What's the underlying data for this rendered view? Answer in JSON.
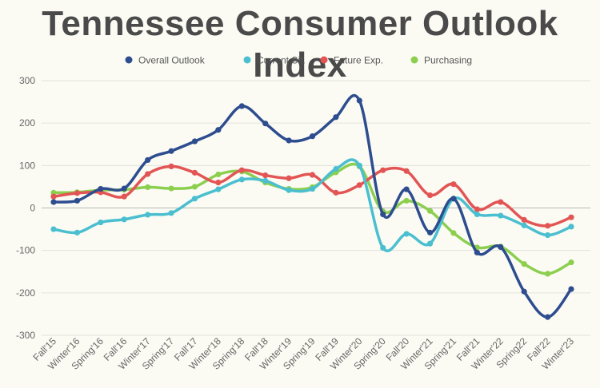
{
  "chart_data": {
    "type": "line",
    "title": "Tennessee Consumer Outlook Index",
    "xlabel": "",
    "ylabel": "",
    "ylim": [
      -300,
      300
    ],
    "yticks": [
      300,
      200,
      100,
      0,
      -100,
      -200,
      -300
    ],
    "grid": true,
    "legend_position": "top-center",
    "categories": [
      "Fall'15",
      "Winter'16",
      "Spring'16",
      "Fall'16",
      "Winter'17",
      "Spring'17",
      "Fall'17",
      "Winter'18",
      "Spring'18",
      "Fall'18",
      "Winter'19",
      "Spring'19",
      "Fall'19",
      "Winter'20",
      "Spring'20",
      "Fall'20",
      "Winter'21",
      "Spring'21",
      "Fall'21",
      "Winter'22",
      "Spring22",
      "Fall'22",
      "Winter'23"
    ],
    "series": [
      {
        "name": "Overall Outlook",
        "color": "#2e4d8f",
        "values": [
          14,
          17,
          45,
          46,
          113,
          134,
          157,
          184,
          240,
          199,
          159,
          169,
          214,
          253,
          -15,
          44,
          -58,
          22,
          -105,
          -92,
          -197,
          -257,
          -191
        ]
      },
      {
        "name": "Current Sit.",
        "color": "#4bbfcf",
        "values": [
          -50,
          -58,
          -34,
          -27,
          -16,
          -12,
          22,
          44,
          67,
          64,
          42,
          45,
          92,
          100,
          -94,
          -61,
          -84,
          22,
          -15,
          -18,
          -41,
          -64,
          -44
        ]
      },
      {
        "name": "Future Exp.",
        "color": "#e25554",
        "values": [
          27,
          35,
          37,
          27,
          80,
          98,
          83,
          60,
          89,
          77,
          70,
          78,
          36,
          54,
          89,
          87,
          30,
          56,
          -3,
          14,
          -28,
          -42,
          -22
        ]
      },
      {
        "name": "Purchasing",
        "color": "#8ccf4f",
        "values": [
          36,
          37,
          42,
          43,
          49,
          46,
          50,
          79,
          86,
          60,
          45,
          49,
          84,
          98,
          -8,
          17,
          -7,
          -59,
          -93,
          -91,
          -132,
          -155,
          -128
        ]
      }
    ]
  }
}
